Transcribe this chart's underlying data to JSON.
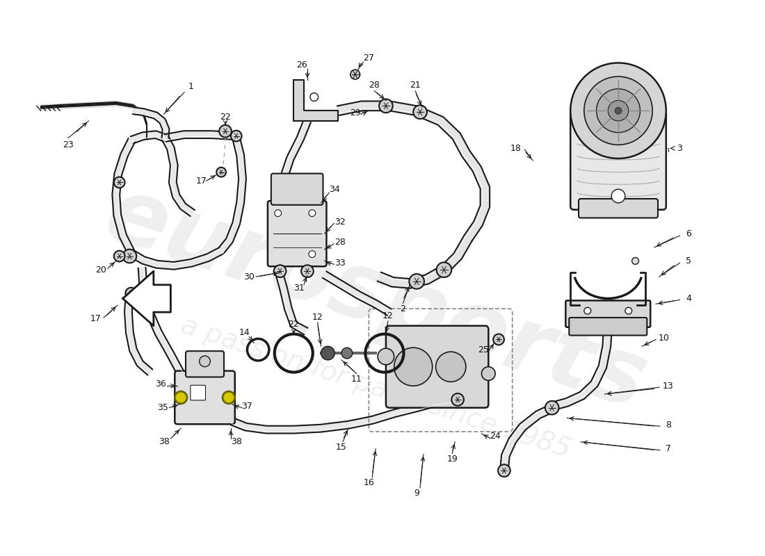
{
  "bg_color": "#ffffff",
  "lc": "#1a1a1a",
  "wm1": "eurosports",
  "wm2": "a passion for parts since 1985",
  "wm_color": "#c0c0c0",
  "tube_fill": "#e8e8e8",
  "tube_edge": "#1a1a1a",
  "comp_fill": "#e0e0e0",
  "highlight": "#f5f5a0",
  "shadow": "#b0b0b0"
}
